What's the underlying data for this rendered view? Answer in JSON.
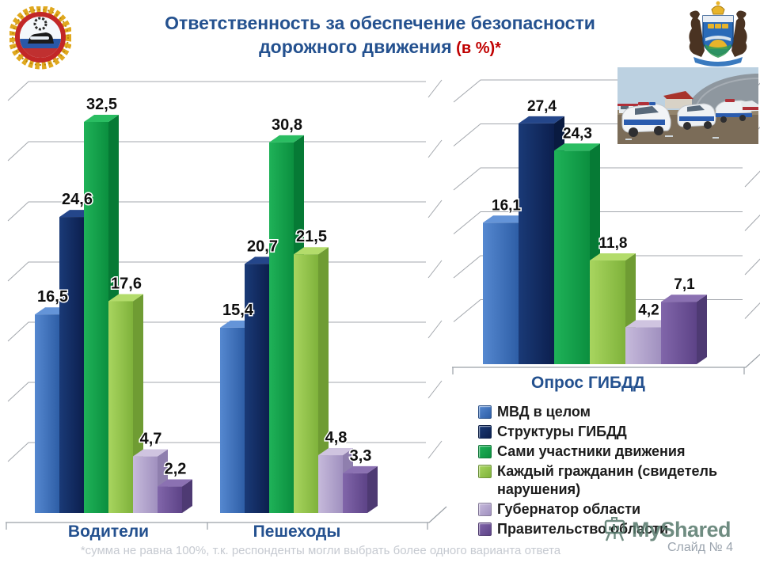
{
  "slide": {
    "title_line1": "Ответственность за обеспечение безопасности",
    "title_line2": "дорожного движения",
    "title_suffix": " (в %)*",
    "title_color": "#24518f",
    "suffix_color": "#c00000"
  },
  "logos": {
    "left": "gibdd-emblem",
    "right": "tyumen-region-coat-of-arms"
  },
  "photo": {
    "alt": "police-cars-parking-lot-photo"
  },
  "chart_data": [
    {
      "type": "bar",
      "title": "",
      "categories": [
        "Водители",
        "Пешеходы"
      ],
      "ylim": [
        0,
        35
      ],
      "gridstep": 5,
      "grid": true,
      "series": [
        {
          "name": "МВД в целом",
          "values": [
            16.5,
            15.4
          ],
          "labels": [
            "16,5",
            "15,4"
          ],
          "front_light": "#5588d0",
          "front_dark": "#2e5ea6",
          "top": "#6494d8",
          "side": "#274f8e"
        },
        {
          "name": "Структуры ГИБДД",
          "values": [
            24.6,
            20.7
          ],
          "labels": [
            "24,6",
            "20,7"
          ],
          "front_light": "#1a3a77",
          "front_dark": "#0c1f4e",
          "top": "#24468a",
          "side": "#091a40"
        },
        {
          "name": "Сами участники движения",
          "values": [
            32.5,
            30.8
          ],
          "labels": [
            "32,5",
            "30,8"
          ],
          "front_light": "#1fb258",
          "front_dark": "#0b8f3f",
          "top": "#2abd62",
          "side": "#067a35"
        },
        {
          "name": "Каждый гражданин (свидетель нарушения)",
          "values": [
            17.6,
            21.5
          ],
          "labels": [
            "17,6",
            "21,5"
          ],
          "front_light": "#a8d55f",
          "front_dark": "#7fb23b",
          "top": "#b3dc6b",
          "side": "#6f9c33"
        },
        {
          "name": "Губернатор области",
          "values": [
            4.7,
            4.8
          ],
          "labels": [
            "4,7",
            "4,8"
          ],
          "front_light": "#c6badb",
          "front_dark": "#a090bf",
          "top": "#cfc4e0",
          "side": "#8f7fae"
        },
        {
          "name": "Правительство области",
          "values": [
            2.2,
            3.3
          ],
          "labels": [
            "2,2",
            "3,3"
          ],
          "front_light": "#8166aa",
          "front_dark": "#5d4387",
          "top": "#8b71b2",
          "side": "#4e3a73"
        }
      ]
    },
    {
      "type": "bar",
      "title": "Опрос ГИБДД",
      "categories": [
        "Опрос ГИБДД"
      ],
      "ylim": [
        0,
        30
      ],
      "gridstep": 5,
      "grid": true,
      "series": [
        {
          "name": "МВД в целом",
          "values": [
            16.1
          ],
          "labels": [
            "16,1"
          ],
          "front_light": "#5588d0",
          "front_dark": "#2e5ea6",
          "top": "#6494d8",
          "side": "#274f8e"
        },
        {
          "name": "Структуры ГИБДД",
          "values": [
            27.4
          ],
          "labels": [
            "27,4"
          ],
          "front_light": "#1a3a77",
          "front_dark": "#0c1f4e",
          "top": "#24468a",
          "side": "#091a40"
        },
        {
          "name": "Сами участники движения",
          "values": [
            24.3
          ],
          "labels": [
            "24,3"
          ],
          "front_light": "#1fb258",
          "front_dark": "#0b8f3f",
          "top": "#2abd62",
          "side": "#067a35"
        },
        {
          "name": "Каждый гражданин (свидетель нарушения)",
          "values": [
            11.8
          ],
          "labels": [
            "11,8"
          ],
          "front_light": "#a8d55f",
          "front_dark": "#7fb23b",
          "top": "#b3dc6b",
          "side": "#6f9c33"
        },
        {
          "name": "Губернатор области",
          "values": [
            4.2
          ],
          "labels": [
            "4,2"
          ],
          "front_light": "#c6badb",
          "front_dark": "#a090bf",
          "top": "#cfc4e0",
          "side": "#8f7fae"
        },
        {
          "name": "Правительство области",
          "values": [
            7.1
          ],
          "labels": [
            "7,1"
          ],
          "front_light": "#8166aa",
          "front_dark": "#5d4387",
          "top": "#8b71b2",
          "side": "#4e3a73"
        }
      ]
    }
  ],
  "category_labels": {
    "left": "Водители",
    "right": "Пешеходы"
  },
  "chart2_title": "Опрос ГИБДД",
  "legend": {
    "items": [
      {
        "label": "МВД в целом",
        "color_light": "#5588d0",
        "color_dark": "#2e5ea6"
      },
      {
        "label": "Структуры ГИБДД",
        "color_light": "#1a3a77",
        "color_dark": "#0c1f4e"
      },
      {
        "label": "Сами участники движения",
        "color_light": "#1fb258",
        "color_dark": "#0b8f3f"
      },
      {
        "label": "Каждый гражданин  (свидетель нарушения)",
        "color_light": "#a8d55f",
        "color_dark": "#7fb23b"
      },
      {
        "label": "Губернатор области",
        "color_light": "#c6badb",
        "color_dark": "#a090bf"
      },
      {
        "label": "Правительство области",
        "color_light": "#8166aa",
        "color_dark": "#5d4387"
      }
    ]
  },
  "footer": {
    "footnote": "*сумма не равна 100%, т.к. респонденты могли выбрать более одного варианта ответа",
    "slide_number": "Слайд № 4",
    "watermark": "MyShared"
  }
}
